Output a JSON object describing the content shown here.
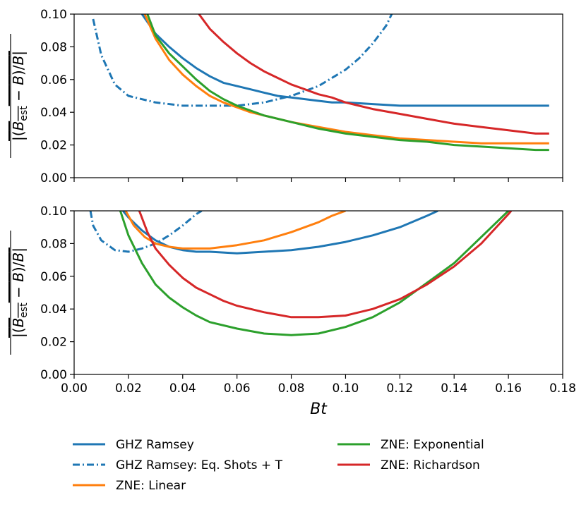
{
  "chart_data": [
    {
      "type": "line",
      "panel": "top",
      "ylabel": "|(B_est − B)/B| (overlined)",
      "xlim": [
        0.0,
        0.18
      ],
      "ylim": [
        0.0,
        0.1
      ],
      "yticks": [
        "0.00",
        "0.02",
        "0.04",
        "0.06",
        "0.08",
        "0.10"
      ],
      "series": [
        {
          "name": "GHZ Ramsey",
          "color": "#1f77b4",
          "style": "solid",
          "x": [
            0.025,
            0.03,
            0.035,
            0.04,
            0.045,
            0.05,
            0.055,
            0.06,
            0.065,
            0.07,
            0.075,
            0.08,
            0.085,
            0.09,
            0.095,
            0.1,
            0.11,
            0.12,
            0.13,
            0.14,
            0.15,
            0.16,
            0.17,
            0.175
          ],
          "y": [
            0.1,
            0.088,
            0.08,
            0.073,
            0.067,
            0.062,
            0.058,
            0.056,
            0.054,
            0.052,
            0.05,
            0.049,
            0.048,
            0.047,
            0.046,
            0.046,
            0.045,
            0.044,
            0.044,
            0.044,
            0.044,
            0.044,
            0.044,
            0.044
          ]
        },
        {
          "name": "GHZ Ramsey: Eq. Shots + T",
          "color": "#1f77b4",
          "style": "dashdot",
          "x": [
            0.007,
            0.01,
            0.015,
            0.02,
            0.03,
            0.04,
            0.05,
            0.06,
            0.07,
            0.08,
            0.09,
            0.1,
            0.105,
            0.11,
            0.115,
            0.117
          ],
          "y": [
            0.097,
            0.075,
            0.057,
            0.05,
            0.046,
            0.044,
            0.044,
            0.044,
            0.046,
            0.05,
            0.056,
            0.066,
            0.073,
            0.082,
            0.093,
            0.1
          ]
        },
        {
          "name": "ZNE: Linear",
          "color": "#ff7f0e",
          "style": "solid",
          "x": [
            0.026,
            0.03,
            0.035,
            0.04,
            0.045,
            0.05,
            0.055,
            0.06,
            0.065,
            0.07,
            0.08,
            0.09,
            0.1,
            0.11,
            0.12,
            0.13,
            0.14,
            0.15,
            0.16,
            0.17,
            0.175
          ],
          "y": [
            0.1,
            0.085,
            0.072,
            0.063,
            0.056,
            0.05,
            0.046,
            0.043,
            0.04,
            0.038,
            0.034,
            0.031,
            0.028,
            0.026,
            0.024,
            0.023,
            0.022,
            0.021,
            0.021,
            0.021,
            0.021
          ]
        },
        {
          "name": "ZNE: Exponential",
          "color": "#2ca02c",
          "style": "solid",
          "x": [
            0.027,
            0.03,
            0.035,
            0.04,
            0.045,
            0.05,
            0.055,
            0.06,
            0.065,
            0.07,
            0.08,
            0.09,
            0.1,
            0.11,
            0.12,
            0.13,
            0.14,
            0.15,
            0.16,
            0.17,
            0.175
          ],
          "y": [
            0.1,
            0.087,
            0.076,
            0.068,
            0.06,
            0.053,
            0.048,
            0.044,
            0.041,
            0.038,
            0.034,
            0.03,
            0.027,
            0.025,
            0.023,
            0.022,
            0.02,
            0.019,
            0.018,
            0.017,
            0.017
          ]
        },
        {
          "name": "ZNE: Richardson",
          "color": "#d62728",
          "style": "solid",
          "x": [
            0.046,
            0.05,
            0.055,
            0.06,
            0.065,
            0.07,
            0.075,
            0.08,
            0.085,
            0.09,
            0.095,
            0.1,
            0.11,
            0.12,
            0.13,
            0.14,
            0.15,
            0.16,
            0.17,
            0.175
          ],
          "y": [
            0.1,
            0.091,
            0.083,
            0.076,
            0.07,
            0.065,
            0.061,
            0.057,
            0.054,
            0.051,
            0.049,
            0.046,
            0.042,
            0.039,
            0.036,
            0.033,
            0.031,
            0.029,
            0.027,
            0.027
          ]
        }
      ]
    },
    {
      "type": "line",
      "panel": "bottom",
      "ylabel": "|(B_est − B)/B| (overlined)",
      "xlabel": "Bt",
      "xlim": [
        0.0,
        0.18
      ],
      "ylim": [
        0.0,
        0.1
      ],
      "xticks": [
        "0.00",
        "0.02",
        "0.04",
        "0.06",
        "0.08",
        "0.10",
        "0.12",
        "0.14",
        "0.16",
        "0.18"
      ],
      "yticks": [
        "0.00",
        "0.02",
        "0.04",
        "0.06",
        "0.08",
        "0.10"
      ],
      "series": [
        {
          "name": "GHZ Ramsey",
          "color": "#1f77b4",
          "style": "solid",
          "x": [
            0.018,
            0.02,
            0.025,
            0.03,
            0.035,
            0.04,
            0.045,
            0.05,
            0.06,
            0.07,
            0.08,
            0.09,
            0.1,
            0.11,
            0.12,
            0.13,
            0.134
          ],
          "y": [
            0.1,
            0.096,
            0.088,
            0.082,
            0.078,
            0.076,
            0.075,
            0.075,
            0.074,
            0.075,
            0.076,
            0.078,
            0.081,
            0.085,
            0.09,
            0.097,
            0.1
          ]
        },
        {
          "name": "GHZ Ramsey: Eq. Shots + T",
          "color": "#1f77b4",
          "style": "dashdot",
          "x": [
            0.006,
            0.007,
            0.01,
            0.015,
            0.02,
            0.025,
            0.03,
            0.035,
            0.04,
            0.045,
            0.047
          ],
          "y": [
            0.1,
            0.091,
            0.082,
            0.076,
            0.075,
            0.077,
            0.08,
            0.085,
            0.091,
            0.098,
            0.1
          ]
        },
        {
          "name": "ZNE: Linear",
          "color": "#ff7f0e",
          "style": "solid",
          "x": [
            0.019,
            0.022,
            0.026,
            0.03,
            0.035,
            0.04,
            0.045,
            0.05,
            0.06,
            0.07,
            0.08,
            0.09,
            0.095,
            0.1
          ],
          "y": [
            0.1,
            0.091,
            0.084,
            0.08,
            0.078,
            0.077,
            0.077,
            0.077,
            0.079,
            0.082,
            0.087,
            0.093,
            0.097,
            0.1
          ]
        },
        {
          "name": "ZNE: Exponential",
          "color": "#2ca02c",
          "style": "solid",
          "x": [
            0.017,
            0.02,
            0.025,
            0.03,
            0.035,
            0.04,
            0.045,
            0.05,
            0.06,
            0.07,
            0.08,
            0.09,
            0.1,
            0.11,
            0.12,
            0.13,
            0.14,
            0.15,
            0.16
          ],
          "y": [
            0.1,
            0.085,
            0.068,
            0.055,
            0.047,
            0.041,
            0.036,
            0.032,
            0.028,
            0.025,
            0.024,
            0.025,
            0.029,
            0.035,
            0.044,
            0.056,
            0.068,
            0.084,
            0.1
          ]
        },
        {
          "name": "ZNE: Richardson",
          "color": "#d62728",
          "style": "solid",
          "x": [
            0.024,
            0.027,
            0.03,
            0.035,
            0.04,
            0.045,
            0.05,
            0.055,
            0.06,
            0.07,
            0.08,
            0.09,
            0.1,
            0.11,
            0.12,
            0.13,
            0.14,
            0.15,
            0.16,
            0.161
          ],
          "y": [
            0.1,
            0.087,
            0.077,
            0.067,
            0.059,
            0.053,
            0.049,
            0.045,
            0.042,
            0.038,
            0.035,
            0.035,
            0.036,
            0.04,
            0.046,
            0.055,
            0.066,
            0.08,
            0.098,
            0.1
          ]
        }
      ]
    }
  ],
  "legend": {
    "position": "below",
    "entries": [
      {
        "label": "GHZ Ramsey",
        "color": "#1f77b4",
        "style": "solid"
      },
      {
        "label": "GHZ Ramsey: Eq. Shots + T",
        "color": "#1f77b4",
        "style": "dashdot"
      },
      {
        "label": "ZNE: Linear",
        "color": "#ff7f0e",
        "style": "solid"
      },
      {
        "label": "ZNE: Exponential",
        "color": "#2ca02c",
        "style": "solid"
      },
      {
        "label": "ZNE: Richardson",
        "color": "#d62728",
        "style": "solid"
      }
    ]
  }
}
